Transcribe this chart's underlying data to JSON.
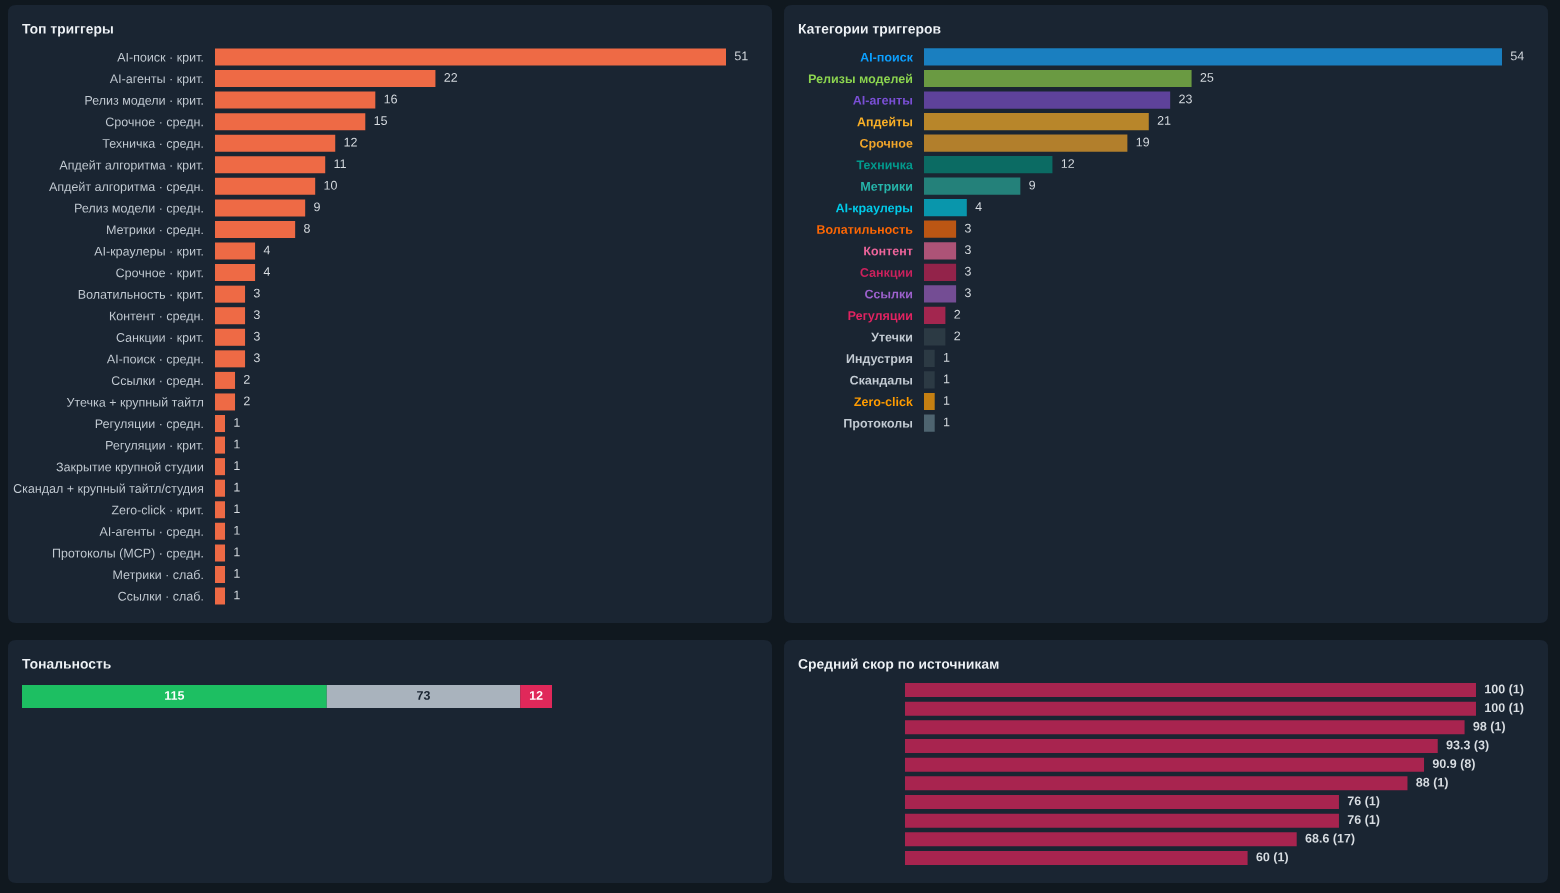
{
  "chart_data": [
    {
      "type": "bar",
      "title": "Топ триггеры",
      "orientation": "horizontal",
      "categories": [
        "AI-поиск · крит.",
        "AI-агенты · крит.",
        "Релиз модели · крит.",
        "Срочное · средн.",
        "Техничка · средн.",
        "Апдейт алгоритма · крит.",
        "Апдейт алгоритма · средн.",
        "Релиз модели · средн.",
        "Метрики · средн.",
        "AI-краулеры · крит.",
        "Срочное · крит.",
        "Волатильность · крит.",
        "Контент · средн.",
        "Санкции · крит.",
        "AI-поиск · средн.",
        "Ссылки · средн.",
        "Утечка + крупный тайтл",
        "Регуляции · средн.",
        "Регуляции · крит.",
        "Закрытие крупной студии",
        "Скандал + крупный тайтл/студия",
        "Zero-click · крит.",
        "AI-агенты · средн.",
        "Протоколы (MCP) · средн.",
        "Метрики · слаб.",
        "Ссылки · слаб."
      ],
      "values": [
        51,
        22,
        16,
        15,
        12,
        11,
        10,
        9,
        8,
        4,
        4,
        3,
        3,
        3,
        3,
        2,
        2,
        1,
        1,
        1,
        1,
        1,
        1,
        1,
        1,
        1
      ],
      "color": "#ee6a45",
      "data_labels": true
    },
    {
      "type": "bar",
      "title": "Категории триггеров",
      "orientation": "horizontal",
      "categories": [
        "AI-поиск",
        "Релизы моделей",
        "AI-агенты",
        "Апдейты",
        "Срочное",
        "Техничка",
        "Метрики",
        "AI-краулеры",
        "Волатильность",
        "Контент",
        "Санкции",
        "Ссылки",
        "Регуляции",
        "Утечки",
        "Индустрия",
        "Скандалы",
        "Zero-click",
        "Протоколы"
      ],
      "values": [
        54,
        25,
        23,
        21,
        19,
        12,
        9,
        4,
        3,
        3,
        3,
        3,
        2,
        2,
        1,
        1,
        1,
        1
      ],
      "colors": [
        "#1a7fc0",
        "#6a9a42",
        "#5e429a",
        "#b8862a",
        "#b27f2c",
        "#0b6b63",
        "#24817a",
        "#0996ac",
        "#bb5614",
        "#ad5377",
        "#93234a",
        "#744d94",
        "#a3264f",
        "#2c3a44",
        "#2c3a44",
        "#2c3a44",
        "#c47f12",
        "#4e6470"
      ],
      "data_labels": true
    },
    {
      "type": "bar",
      "title": "Тональность",
      "orientation": "horizontal",
      "stacked": true,
      "categories": [
        null
      ],
      "series": [
        {
          "color": "#1dbf62",
          "values": [
            115
          ]
        },
        {
          "color": "#a9b3bd",
          "values": [
            73
          ]
        },
        {
          "color": "#e0285a",
          "values": [
            12
          ]
        }
      ],
      "data_labels": true
    },
    {
      "type": "bar",
      "title": "Средний скор по источникам",
      "orientation": "horizontal",
      "categories": [
        null,
        null,
        null,
        null,
        null,
        null,
        null,
        null,
        null,
        null
      ],
      "values": [
        100,
        100,
        98,
        93.3,
        90.9,
        88,
        76,
        76,
        68.6,
        60
      ],
      "color": "#a8244f",
      "value_labels": [
        "100 (1)",
        "100 (1)",
        "98 (1)",
        "93.3 (3)",
        "90.9 (8)",
        "88 (1)",
        "76 (1)",
        "76 (1)",
        "68.6 (17)",
        "60 (1)"
      ]
    }
  ]
}
